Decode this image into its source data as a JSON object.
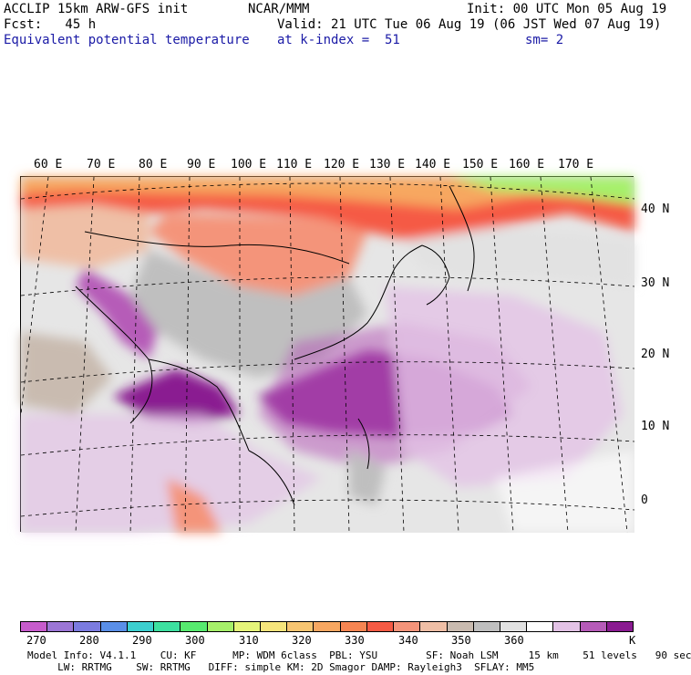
{
  "header": {
    "line1_left": "ACCLIP 15km ARW-GFS init",
    "line1_center": "NCAR/MMM",
    "line1_right": "Init: 00 UTC Mon 05 Aug 19",
    "line2_left": "Fcst:   45 h",
    "line2_right": "Valid: 21 UTC Tue 06 Aug 19 (06 JST Wed 07 Aug 19)",
    "line3_left": "Equivalent potential temperature",
    "line3_center": "at k-index =  51",
    "line3_right": "sm= 2"
  },
  "map": {
    "lon_labels": [
      "60 E",
      "70 E",
      "80 E",
      "90 E",
      "100 E",
      "110 E",
      "120 E",
      "130 E",
      "140 E",
      "150 E",
      "160 E",
      "170 E"
    ],
    "lat_labels": [
      "40 N",
      "30 N",
      "20 N",
      "10 N",
      "0"
    ]
  },
  "colorbar": {
    "unit": "K",
    "tick_labels": [
      "270",
      "280",
      "290",
      "300",
      "310",
      "320",
      "330",
      "340",
      "350",
      "360"
    ],
    "colors": [
      "#c75ccc",
      "#9c76d6",
      "#7b7bdf",
      "#5a8fe8",
      "#3ccfcf",
      "#3de0a0",
      "#57ea6f",
      "#a6f06a",
      "#e6f57a",
      "#f6e57c",
      "#f7c571",
      "#f7a761",
      "#f68552",
      "#f55a44",
      "#f4947a",
      "#efbfa6",
      "#c9bbb0",
      "#bfbfbf",
      "#e2e2e2",
      "#ffffff",
      "#e3c3e6",
      "#b65bb8",
      "#8a1b91"
    ]
  },
  "model_info": {
    "line1": "Model Info: V4.1.1    CU: KF      MP: WDM 6class  PBL: YSU        SF: Noah LSM     15 km    51 levels   90 sec",
    "line2": "     LW: RRTMG    SW: RRTMG   DIFF: simple KM: 2D Smagor DAMP: Rayleigh3  SFLAY: MM5"
  }
}
